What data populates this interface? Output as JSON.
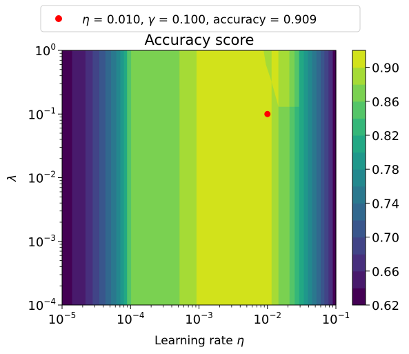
{
  "chart_data": {
    "type": "contourf",
    "title": "Accuracy score",
    "xlabel": "Learning rate η",
    "ylabel": "λ",
    "xscale": "log",
    "yscale": "log",
    "xlim": [
      1e-05,
      0.1
    ],
    "ylim": [
      0.0001,
      1
    ],
    "x_ticks": [
      {
        "value": 1e-05,
        "base": "10",
        "exp": "−5"
      },
      {
        "value": 0.0001,
        "base": "10",
        "exp": "−4"
      },
      {
        "value": 0.001,
        "base": "10",
        "exp": "−3"
      },
      {
        "value": 0.01,
        "base": "10",
        "exp": "−2"
      },
      {
        "value": 0.1,
        "base": "10",
        "exp": "−1"
      }
    ],
    "y_ticks": [
      {
        "value": 0.0001,
        "base": "10",
        "exp": "−4"
      },
      {
        "value": 0.001,
        "base": "10",
        "exp": "−3"
      },
      {
        "value": 0.01,
        "base": "10",
        "exp": "−2"
      },
      {
        "value": 0.1,
        "base": "10",
        "exp": "−1"
      },
      {
        "value": 1,
        "base": "10",
        "exp": "0"
      }
    ],
    "colorbar": {
      "min": 0.62,
      "max": 0.92,
      "levels": [
        0.62,
        0.64,
        0.66,
        0.68,
        0.7,
        0.72,
        0.74,
        0.76,
        0.78,
        0.8,
        0.82,
        0.84,
        0.86,
        0.88,
        0.9,
        0.92
      ],
      "colors": [
        "#440154",
        "#481a6c",
        "#472f7d",
        "#414487",
        "#39568c",
        "#31688e",
        "#2a788e",
        "#23888e",
        "#1f988b",
        "#22a884",
        "#35b779",
        "#54c568",
        "#7ad151",
        "#a5db36",
        "#d2e21b",
        "#e8e419"
      ],
      "ticks": [
        "0.62",
        "0.66",
        "0.70",
        "0.74",
        "0.78",
        "0.82",
        "0.86",
        "0.90"
      ]
    },
    "columns": [
      {
        "x0": 1e-05,
        "x1": 1.4e-05,
        "level": 0
      },
      {
        "x0": 1.4e-05,
        "x1": 2.2e-05,
        "level": 1
      },
      {
        "x0": 2.2e-05,
        "x1": 2.8e-05,
        "level": 2
      },
      {
        "x0": 2.8e-05,
        "x1": 3.5e-05,
        "level": 3
      },
      {
        "x0": 3.5e-05,
        "x1": 4.3e-05,
        "level": 4
      },
      {
        "x0": 4.3e-05,
        "x1": 5.2e-05,
        "level": 5
      },
      {
        "x0": 5.2e-05,
        "x1": 6.2e-05,
        "level": 6
      },
      {
        "x0": 6.2e-05,
        "x1": 7.1e-05,
        "level": 7
      },
      {
        "x0": 7.1e-05,
        "x1": 8e-05,
        "level": 8
      },
      {
        "x0": 8e-05,
        "x1": 8.9e-05,
        "level": 9
      },
      {
        "x0": 8.9e-05,
        "x1": 0.000102,
        "level": 11
      },
      {
        "x0": 0.000102,
        "x1": 0.00052,
        "level": 12
      },
      {
        "x0": 0.00052,
        "x1": 0.00092,
        "level": 13
      },
      {
        "x0": 0.00092,
        "x1": 0.0115,
        "level": 14
      },
      {
        "x0": 0.0115,
        "x1": 0.0145,
        "level": 13
      },
      {
        "x0": 0.0145,
        "x1": 0.021,
        "level": 12
      },
      {
        "x0": 0.021,
        "x1": 0.025,
        "level": 11
      },
      {
        "x0": 0.025,
        "x1": 0.029,
        "level": 10
      },
      {
        "x0": 0.029,
        "x1": 0.034,
        "level": 9
      },
      {
        "x0": 0.034,
        "x1": 0.039,
        "level": 8
      },
      {
        "x0": 0.039,
        "x1": 0.045,
        "level": 7
      },
      {
        "x0": 0.045,
        "x1": 0.052,
        "level": 6
      },
      {
        "x0": 0.052,
        "x1": 0.06,
        "level": 5
      },
      {
        "x0": 0.06,
        "x1": 0.068,
        "level": 4
      },
      {
        "x0": 0.068,
        "x1": 0.078,
        "level": 3
      },
      {
        "x0": 0.078,
        "x1": 0.09,
        "level": 2
      },
      {
        "x0": 0.09,
        "x1": 0.1,
        "level": 0
      }
    ],
    "regions": [
      {
        "level": 13,
        "points": [
          [
            0.00052,
            1
          ],
          [
            0.00092,
            1
          ],
          [
            0.00092,
            0.4
          ],
          [
            0.00052,
            0.25
          ]
        ]
      },
      {
        "level": 13,
        "points": [
          [
            0.0095,
            0.6
          ],
          [
            0.0115,
            0.32
          ],
          [
            0.0115,
            1
          ],
          [
            0.0088,
            1
          ]
        ]
      },
      {
        "level": 14,
        "points": [
          [
            0.0115,
            1
          ],
          [
            0.0145,
            1
          ],
          [
            0.0145,
            0.13
          ],
          [
            0.0115,
            0.32
          ]
        ]
      },
      {
        "level": 13,
        "points": [
          [
            0.0145,
            1
          ],
          [
            0.021,
            1
          ],
          [
            0.021,
            0.13
          ],
          [
            0.0145,
            0.13
          ]
        ]
      },
      {
        "level": 12,
        "points": [
          [
            0.021,
            1
          ],
          [
            0.025,
            1
          ],
          [
            0.025,
            0.13
          ],
          [
            0.021,
            0.13
          ]
        ]
      },
      {
        "level": 11,
        "points": [
          [
            0.025,
            1
          ],
          [
            0.029,
            1
          ],
          [
            0.029,
            0.13
          ],
          [
            0.025,
            0.13
          ]
        ]
      }
    ],
    "points": [
      {
        "x": 0.01,
        "y": 0.1,
        "color": "#ff0000"
      }
    ],
    "legend": {
      "placement": "top-center",
      "eta_value": "0.010",
      "gamma_value": "0.100",
      "accuracy_value": "0.909"
    }
  }
}
